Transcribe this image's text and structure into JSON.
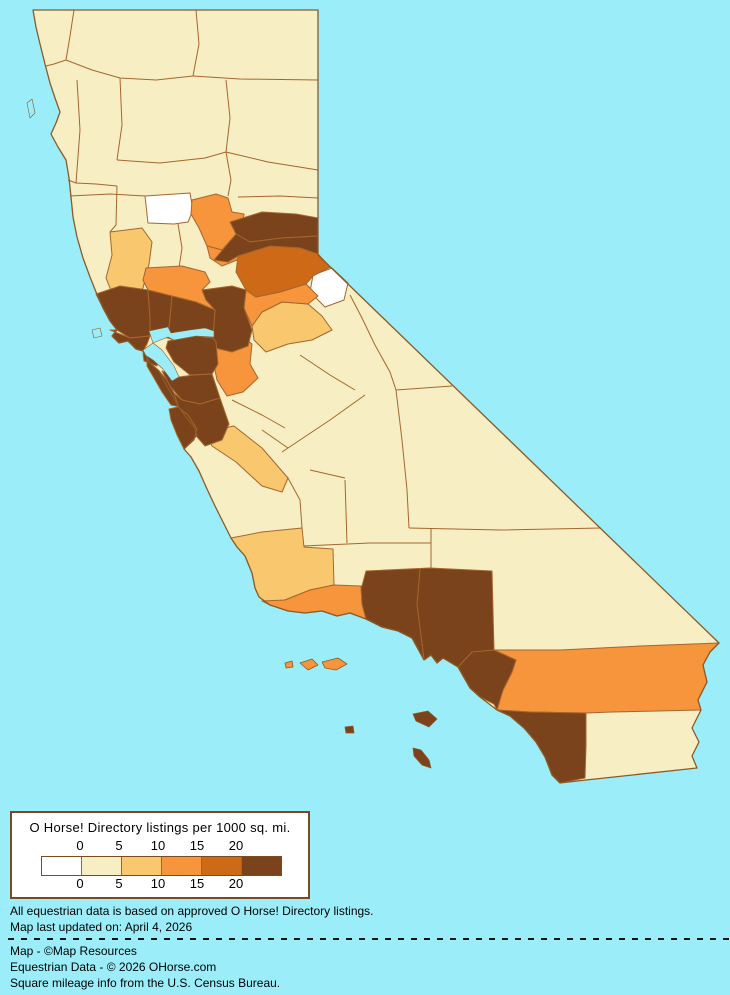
{
  "map": {
    "region": "California counties choropleth",
    "water_color": "#9BEEF9",
    "county_border_color": "#A5662E",
    "state_border_color": "#8B5A28",
    "categories": [
      {
        "range": "no listings",
        "color": "#FFFFFF"
      },
      {
        "range": "0-5",
        "color": "#F8EEC3"
      },
      {
        "range": "5-10",
        "color": "#F8C76E"
      },
      {
        "range": "10-15",
        "color": "#F6953C"
      },
      {
        "range": "15-20",
        "color": "#CE6A17"
      },
      {
        "range": "20+",
        "color": "#7B431B"
      }
    ],
    "counties": [
      {
        "name": "Alameda",
        "category": 5
      },
      {
        "name": "Alpine",
        "category": 0
      },
      {
        "name": "Amador",
        "category": 3
      },
      {
        "name": "Butte",
        "category": 3
      },
      {
        "name": "Calaveras",
        "category": 2
      },
      {
        "name": "Colusa",
        "category": 1
      },
      {
        "name": "Contra Costa",
        "category": 5
      },
      {
        "name": "Del Norte",
        "category": 1
      },
      {
        "name": "El Dorado",
        "category": 4
      },
      {
        "name": "Fresno",
        "category": 1
      },
      {
        "name": "Glenn",
        "category": 0
      },
      {
        "name": "Humboldt",
        "category": 1
      },
      {
        "name": "Imperial",
        "category": 1
      },
      {
        "name": "Inyo",
        "category": 1
      },
      {
        "name": "Kern",
        "category": 1
      },
      {
        "name": "Kings",
        "category": 1
      },
      {
        "name": "Lake",
        "category": 2
      },
      {
        "name": "Lassen",
        "category": 1
      },
      {
        "name": "Los Angeles",
        "category": 5
      },
      {
        "name": "Madera",
        "category": 1
      },
      {
        "name": "Marin",
        "category": 5
      },
      {
        "name": "Mariposa",
        "category": 1
      },
      {
        "name": "Mendocino",
        "category": 1
      },
      {
        "name": "Merced",
        "category": 1
      },
      {
        "name": "Modoc",
        "category": 1
      },
      {
        "name": "Mono",
        "category": 1
      },
      {
        "name": "Monterey",
        "category": 1
      },
      {
        "name": "Napa",
        "category": 5
      },
      {
        "name": "Nevada",
        "category": 5
      },
      {
        "name": "Orange",
        "category": 5
      },
      {
        "name": "Placer",
        "category": 5
      },
      {
        "name": "Plumas",
        "category": 1
      },
      {
        "name": "Riverside",
        "category": 3
      },
      {
        "name": "Sacramento",
        "category": 5
      },
      {
        "name": "San Benito",
        "category": 2
      },
      {
        "name": "San Bernardino",
        "category": 1
      },
      {
        "name": "San Diego",
        "category": 5
      },
      {
        "name": "San Francisco",
        "category": 5
      },
      {
        "name": "San Joaquin",
        "category": 3
      },
      {
        "name": "San Luis Obispo",
        "category": 2
      },
      {
        "name": "San Mateo",
        "category": 5
      },
      {
        "name": "Santa Barbara",
        "category": 3
      },
      {
        "name": "Santa Clara",
        "category": 5
      },
      {
        "name": "Santa Cruz",
        "category": 5
      },
      {
        "name": "Shasta",
        "category": 1
      },
      {
        "name": "Sierra",
        "category": 1
      },
      {
        "name": "Siskiyou",
        "category": 1
      },
      {
        "name": "Solano",
        "category": 5
      },
      {
        "name": "Sonoma",
        "category": 5
      },
      {
        "name": "Stanislaus",
        "category": 1
      },
      {
        "name": "Sutter",
        "category": 1
      },
      {
        "name": "Tehama",
        "category": 1
      },
      {
        "name": "Trinity",
        "category": 1
      },
      {
        "name": "Tulare",
        "category": 1
      },
      {
        "name": "Tuolumne",
        "category": 1
      },
      {
        "name": "Ventura",
        "category": 5
      },
      {
        "name": "Yolo",
        "category": 3
      },
      {
        "name": "Yuba",
        "category": 3
      }
    ],
    "islands": [
      {
        "name": "San Miguel Island",
        "county": "Santa Barbara"
      },
      {
        "name": "Santa Rosa Island",
        "county": "Santa Barbara"
      },
      {
        "name": "Santa Cruz Island",
        "county": "Santa Barbara"
      },
      {
        "name": "San Nicolas Island",
        "county": "Ventura"
      },
      {
        "name": "Santa Catalina Island",
        "county": "Los Angeles"
      },
      {
        "name": "San Clemente Island",
        "county": "Los Angeles"
      }
    ]
  },
  "legend": {
    "title": "O Horse! Directory listings per 1000 sq. mi.",
    "ticks_top": [
      "0",
      "5",
      "10",
      "15",
      "20"
    ],
    "ticks_bottom": [
      "0",
      "5",
      "10",
      "15",
      "20"
    ]
  },
  "notes": {
    "line1": "All equestrian data is based on approved O Horse! Directory listings.",
    "line2": "Map last updated on: April 4, 2026",
    "credit1": "Map - ©Map Resources",
    "credit2": "Equestrian Data - © 2026 OHorse.com",
    "credit3": "Square mileage info from the U.S. Census Bureau."
  }
}
